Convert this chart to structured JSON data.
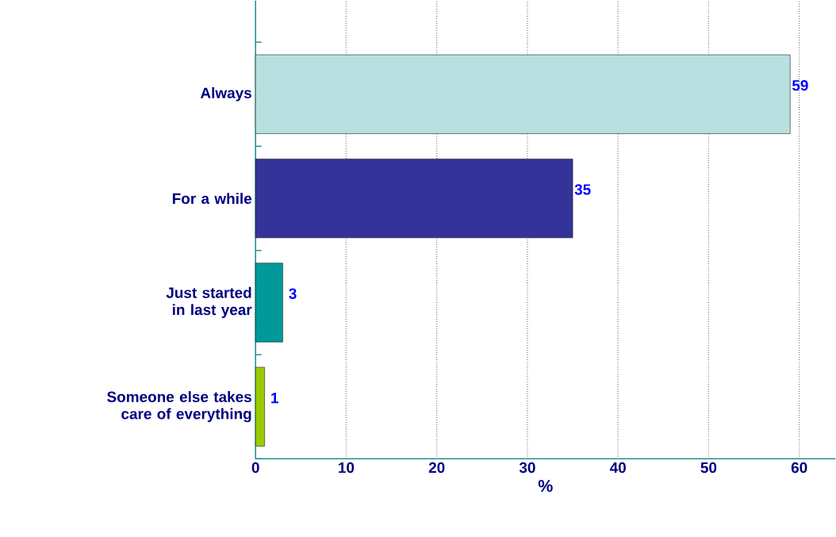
{
  "chart_data": {
    "type": "bar",
    "orientation": "horizontal",
    "xlabel": "%",
    "categories": [
      "Always",
      "For a while",
      "Just started in last year",
      "Someone else takes care of everything"
    ],
    "values": [
      59,
      35,
      3,
      1
    ],
    "colors": [
      "#b8e0e0",
      "#333399",
      "#009999",
      "#99cc00"
    ],
    "xlim": [
      0,
      64
    ],
    "xticks": [
      0,
      10,
      20,
      30,
      40,
      50,
      60
    ],
    "grid": "x",
    "data_labels": true
  }
}
